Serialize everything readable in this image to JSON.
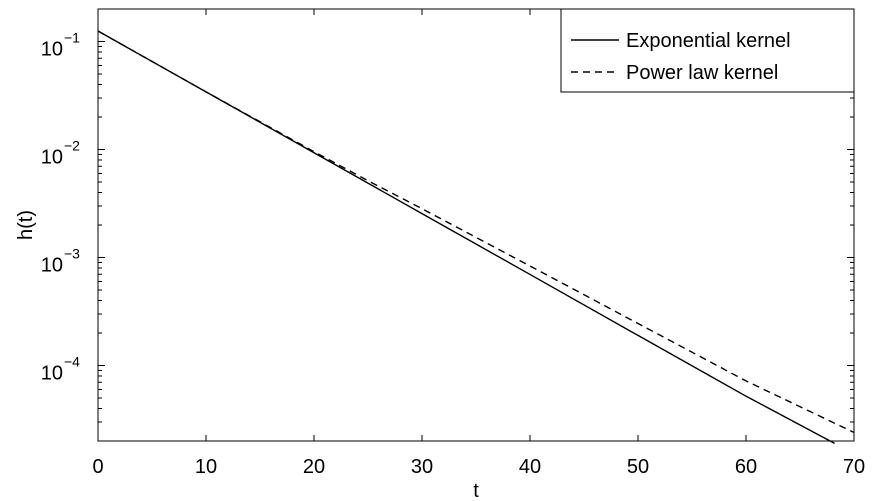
{
  "chart_data": {
    "type": "line",
    "title": "",
    "xlabel": "t",
    "ylabel": "h(t)",
    "xlim": [
      0,
      70
    ],
    "ylim": [
      2e-05,
      0.2
    ],
    "yscale": "log",
    "grid": false,
    "legend_position": "top-right",
    "x_ticks": [
      0,
      10,
      20,
      30,
      40,
      50,
      60,
      70
    ],
    "x_tick_labels": [
      "0",
      "10",
      "20",
      "30",
      "40",
      "50",
      "60",
      "70"
    ],
    "y_ticks": [
      0.0001,
      0.001,
      0.01,
      0.1
    ],
    "y_tick_labels": [
      {
        "base": "10",
        "exp": "−4"
      },
      {
        "base": "10",
        "exp": "−3"
      },
      {
        "base": "10",
        "exp": "−2"
      },
      {
        "base": "10",
        "exp": "−1"
      }
    ],
    "series": [
      {
        "name": "Exponential kernel",
        "style": "solid",
        "color": "#000000",
        "x": [
          0,
          10,
          20,
          30,
          40,
          50,
          60,
          68.2
        ],
        "y": [
          0.125,
          0.0342,
          0.00933,
          0.00255,
          0.000697,
          0.00019,
          5.2e-05,
          1.9e-05
        ]
      },
      {
        "name": "Power law kernel",
        "style": "dashed",
        "color": "#000000",
        "x": [
          0,
          10,
          20,
          25,
          30,
          40,
          50,
          60,
          70
        ],
        "y": [
          0.125,
          0.0342,
          0.00955,
          0.00514,
          0.00283,
          0.000835,
          0.000245,
          7.2e-05,
          2.4e-05
        ]
      }
    ]
  }
}
